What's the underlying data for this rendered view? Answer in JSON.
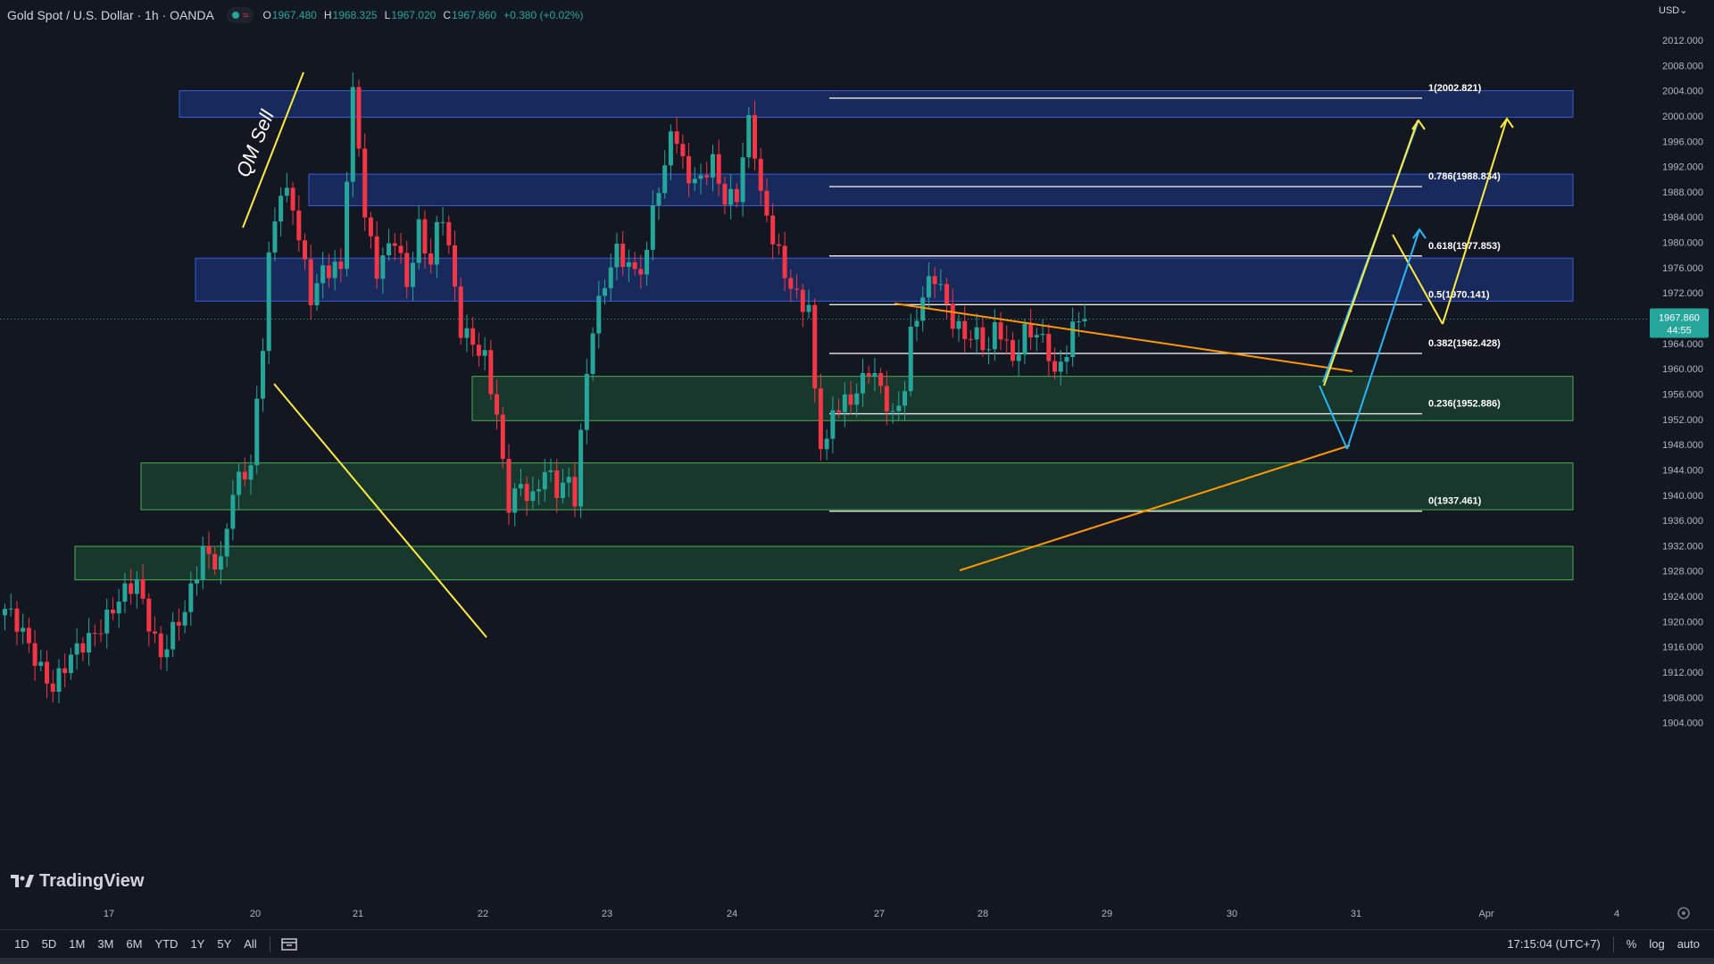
{
  "header": {
    "symbol": "Gold Spot / U.S. Dollar · 1h · OANDA",
    "o_label": "O",
    "o": "1967.480",
    "h_label": "H",
    "h": "1968.325",
    "l_label": "L",
    "l": "1967.020",
    "c_label": "C",
    "c": "1967.860",
    "change": "+0.380 (+0.02%)"
  },
  "currency": "USD",
  "price_tag": {
    "price": "1967.860",
    "countdown": "44:55"
  },
  "brand": "TradingView",
  "bottom_bar": {
    "timeframes": [
      "1D",
      "5D",
      "1M",
      "3M",
      "6M",
      "YTD",
      "1Y",
      "5Y",
      "All"
    ],
    "clock": "17:15:04 (UTC+7)",
    "percent": "%",
    "log": "log",
    "auto": "auto"
  },
  "colors": {
    "background": "#131722",
    "up": "#26a69a",
    "down": "#f23645",
    "supply_zone": "#1e3a8a",
    "demand_zone": "#1b4332",
    "yellow_line": "#ffeb3b",
    "orange_line": "#ff9800",
    "blue_line": "#29b6f6"
  },
  "chart_data": {
    "type": "candlestick",
    "symbol": "XAUUSD",
    "timeframe": "1h",
    "ylim": [
      1902,
      2014
    ],
    "y_ticks": [
      1904,
      1908,
      1912,
      1916,
      1920,
      1924,
      1928,
      1932,
      1936,
      1940,
      1944,
      1948,
      1952,
      1956,
      1960,
      1964,
      1968,
      1972,
      1976,
      1980,
      1984,
      1988,
      1992,
      1996,
      2000,
      2004,
      2008,
      2012
    ],
    "y_tick_labels": [
      "1904.000",
      "1908.000",
      "1912.000",
      "1916.000",
      "1920.000",
      "1924.000",
      "1928.000",
      "1932.000",
      "1936.000",
      "1940.000",
      "1944.000",
      "1948.000",
      "1952.000",
      "1956.000",
      "1960.000",
      "1964.000",
      "1968.000",
      "1972.000",
      "1976.000",
      "1980.000",
      "1984.000",
      "1988.000",
      "1992.000",
      "1996.000",
      "2000.000",
      "2004.000",
      "2008.000",
      "2012.000"
    ],
    "x_tick_labels": [
      "17",
      "20",
      "21",
      "22",
      "23",
      "24",
      "27",
      "28",
      "29",
      "30",
      "31",
      "Apr",
      "4"
    ],
    "current_price": 1967.86,
    "price_path": [
      [
        0,
        1922
      ],
      [
        8,
        1910
      ],
      [
        16,
        1920
      ],
      [
        22,
        1926
      ],
      [
        26,
        1915
      ],
      [
        30,
        1921
      ],
      [
        33,
        1932
      ],
      [
        36,
        1929
      ],
      [
        38,
        1940
      ],
      [
        41,
        1945
      ],
      [
        43,
        1965
      ],
      [
        44,
        1978
      ],
      [
        46,
        1988
      ],
      [
        48,
        1985
      ],
      [
        51,
        1972
      ],
      [
        53,
        1976
      ],
      [
        56,
        1975
      ],
      [
        57,
        1990
      ],
      [
        58,
        2003
      ],
      [
        59,
        1996
      ],
      [
        60,
        1985
      ],
      [
        62,
        1976
      ],
      [
        65,
        1980
      ],
      [
        67,
        1973
      ],
      [
        69,
        1983
      ],
      [
        71,
        1977
      ],
      [
        72,
        1982
      ],
      [
        73,
        1984
      ],
      [
        75,
        1972
      ],
      [
        76,
        1966
      ],
      [
        78,
        1965
      ],
      [
        80,
        1962
      ],
      [
        82,
        1952
      ],
      [
        83,
        1944
      ],
      [
        84,
        1938
      ],
      [
        86,
        1942
      ],
      [
        88,
        1940
      ],
      [
        90,
        1944
      ],
      [
        92,
        1940
      ],
      [
        94,
        1942
      ],
      [
        95,
        1940
      ],
      [
        96,
        1950
      ],
      [
        97,
        1960
      ],
      [
        98,
        1967
      ],
      [
        100,
        1973
      ],
      [
        102,
        1978
      ],
      [
        105,
        1976
      ],
      [
        107,
        1978
      ],
      [
        108,
        1986
      ],
      [
        110,
        1990
      ],
      [
        111,
        1998
      ],
      [
        113,
        1993
      ],
      [
        115,
        1990
      ],
      [
        118,
        1992
      ],
      [
        120,
        1986
      ],
      [
        122,
        1988
      ],
      [
        123,
        1994
      ],
      [
        124,
        2000
      ],
      [
        125,
        1995
      ],
      [
        126,
        1987
      ],
      [
        128,
        1980
      ],
      [
        130,
        1975
      ],
      [
        132,
        1972
      ],
      [
        134,
        1970
      ],
      [
        135,
        1956
      ],
      [
        136,
        1948
      ],
      [
        137,
        1947
      ],
      [
        138,
        1953
      ],
      [
        140,
        1955
      ],
      [
        142,
        1957
      ],
      [
        144,
        1960
      ],
      [
        146,
        1956
      ],
      [
        148,
        1952
      ],
      [
        150,
        1958
      ],
      [
        151,
        1966
      ],
      [
        152,
        1969
      ],
      [
        154,
        1973
      ],
      [
        155,
        1974
      ],
      [
        156,
        1972
      ],
      [
        158,
        1968
      ],
      [
        160,
        1966
      ],
      [
        162,
        1965
      ],
      [
        164,
        1962
      ],
      [
        165,
        1966
      ],
      [
        166,
        1966
      ],
      [
        168,
        1962
      ],
      [
        170,
        1966
      ],
      [
        172,
        1965
      ],
      [
        174,
        1962
      ],
      [
        175,
        1959
      ],
      [
        176,
        1961
      ],
      [
        178,
        1967
      ],
      [
        179,
        1968
      ],
      [
        180,
        1967.86
      ]
    ],
    "zones": [
      {
        "kind": "supply",
        "top": 2004,
        "bottom": 1999.8
      },
      {
        "kind": "supply",
        "top": 1990.8,
        "bottom": 1985.8
      },
      {
        "kind": "supply",
        "top": 1977.5,
        "bottom": 1970.7
      },
      {
        "kind": "demand",
        "top": 1958.8,
        "bottom": 1951.8
      },
      {
        "kind": "demand",
        "top": 1945.1,
        "bottom": 1937.7
      },
      {
        "kind": "demand",
        "top": 1931.9,
        "bottom": 1926.6
      }
    ],
    "fibonacci": [
      {
        "label": "1(2002.821)",
        "value": 2002.821
      },
      {
        "label": "0.786(1988.834)",
        "value": 1988.834
      },
      {
        "label": "0.618(1977.853)",
        "value": 1977.853
      },
      {
        "label": "0.5(1970.141)",
        "value": 1970.141
      },
      {
        "label": "0.382(1962.428)",
        "value": 1962.428
      },
      {
        "label": "0.236(1952.886)",
        "value": 1952.886
      },
      {
        "label": "0(1937.461)",
        "value": 1937.461
      }
    ],
    "annotations": [
      {
        "text": "QM Sell"
      }
    ]
  }
}
